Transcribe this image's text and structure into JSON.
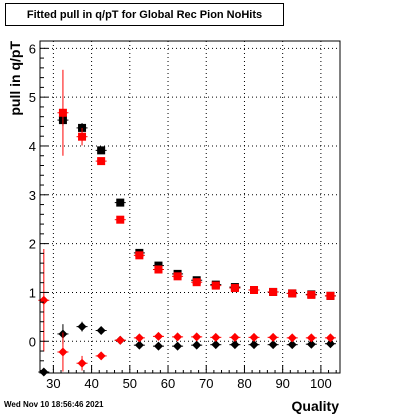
{
  "title": "Fitted pull in q/pT for Global Rec Pion NoHits",
  "timestamp": "Wed Nov 10 18:56:46 2021",
  "chart_data": {
    "type": "scatter",
    "title": "Fitted pull in q/pT for Global Rec Pion NoHits",
    "xlabel": "Quality",
    "ylabel": "pull in q/pT",
    "xlim": [
      26.5,
      105
    ],
    "ylim": [
      -0.65,
      6.15
    ],
    "x_ticks": [
      30,
      40,
      50,
      60,
      70,
      80,
      90,
      100
    ],
    "y_ticks": [
      0,
      1,
      2,
      3,
      4,
      5,
      6
    ],
    "grid": true,
    "x": [
      27.5,
      32.5,
      37.5,
      42.5,
      47.5,
      52.5,
      57.5,
      62.5,
      67.5,
      72.5,
      77.5,
      82.5,
      87.5,
      92.5,
      97.5,
      102.5
    ],
    "series": [
      {
        "marker": "square",
        "color": "#000000",
        "values": [
          null,
          4.53,
          4.37,
          3.91,
          2.84,
          1.81,
          1.55,
          1.38,
          1.25,
          1.16,
          1.11,
          1.05,
          1.01,
          0.98,
          0.96,
          0.93
        ],
        "errors": [
          null,
          0.12,
          0.1,
          0.06,
          0.05,
          0.04,
          0.03,
          0.03,
          0.03,
          0.03,
          0.03,
          0.03,
          0.03,
          0.03,
          0.03,
          0.03
        ]
      },
      {
        "marker": "square",
        "color": "#ff0000",
        "values": [
          null,
          4.68,
          4.19,
          3.69,
          2.49,
          1.76,
          1.47,
          1.33,
          1.21,
          1.14,
          1.09,
          1.05,
          1.01,
          0.98,
          0.95,
          0.93
        ],
        "errors": [
          null,
          0.88,
          0.18,
          0.06,
          0.05,
          0.04,
          0.03,
          0.03,
          0.03,
          0.03,
          0.03,
          0.03,
          0.03,
          0.03,
          0.03,
          0.03
        ]
      },
      {
        "marker": "diamond",
        "color": "#000000",
        "values": [
          -0.63,
          0.15,
          0.3,
          0.22,
          0.02,
          -0.08,
          -0.1,
          -0.1,
          -0.08,
          -0.07,
          -0.07,
          -0.07,
          -0.07,
          -0.07,
          -0.06,
          -0.05
        ],
        "errors": [
          0.0,
          0.2,
          0.1,
          0.05,
          0.04,
          0.03,
          0.03,
          0.03,
          0.03,
          0.03,
          0.03,
          0.03,
          0.03,
          0.03,
          0.03,
          0.03
        ]
      },
      {
        "marker": "diamond",
        "color": "#ff0000",
        "values": [
          0.84,
          -0.22,
          -0.45,
          -0.3,
          0.02,
          0.07,
          0.1,
          0.09,
          0.09,
          0.08,
          0.08,
          0.08,
          0.08,
          0.07,
          0.07,
          0.07
        ],
        "errors": [
          1.05,
          0.4,
          0.15,
          0.05,
          0.04,
          0.03,
          0.03,
          0.03,
          0.03,
          0.03,
          0.03,
          0.03,
          0.03,
          0.03,
          0.03,
          0.03
        ]
      }
    ]
  }
}
